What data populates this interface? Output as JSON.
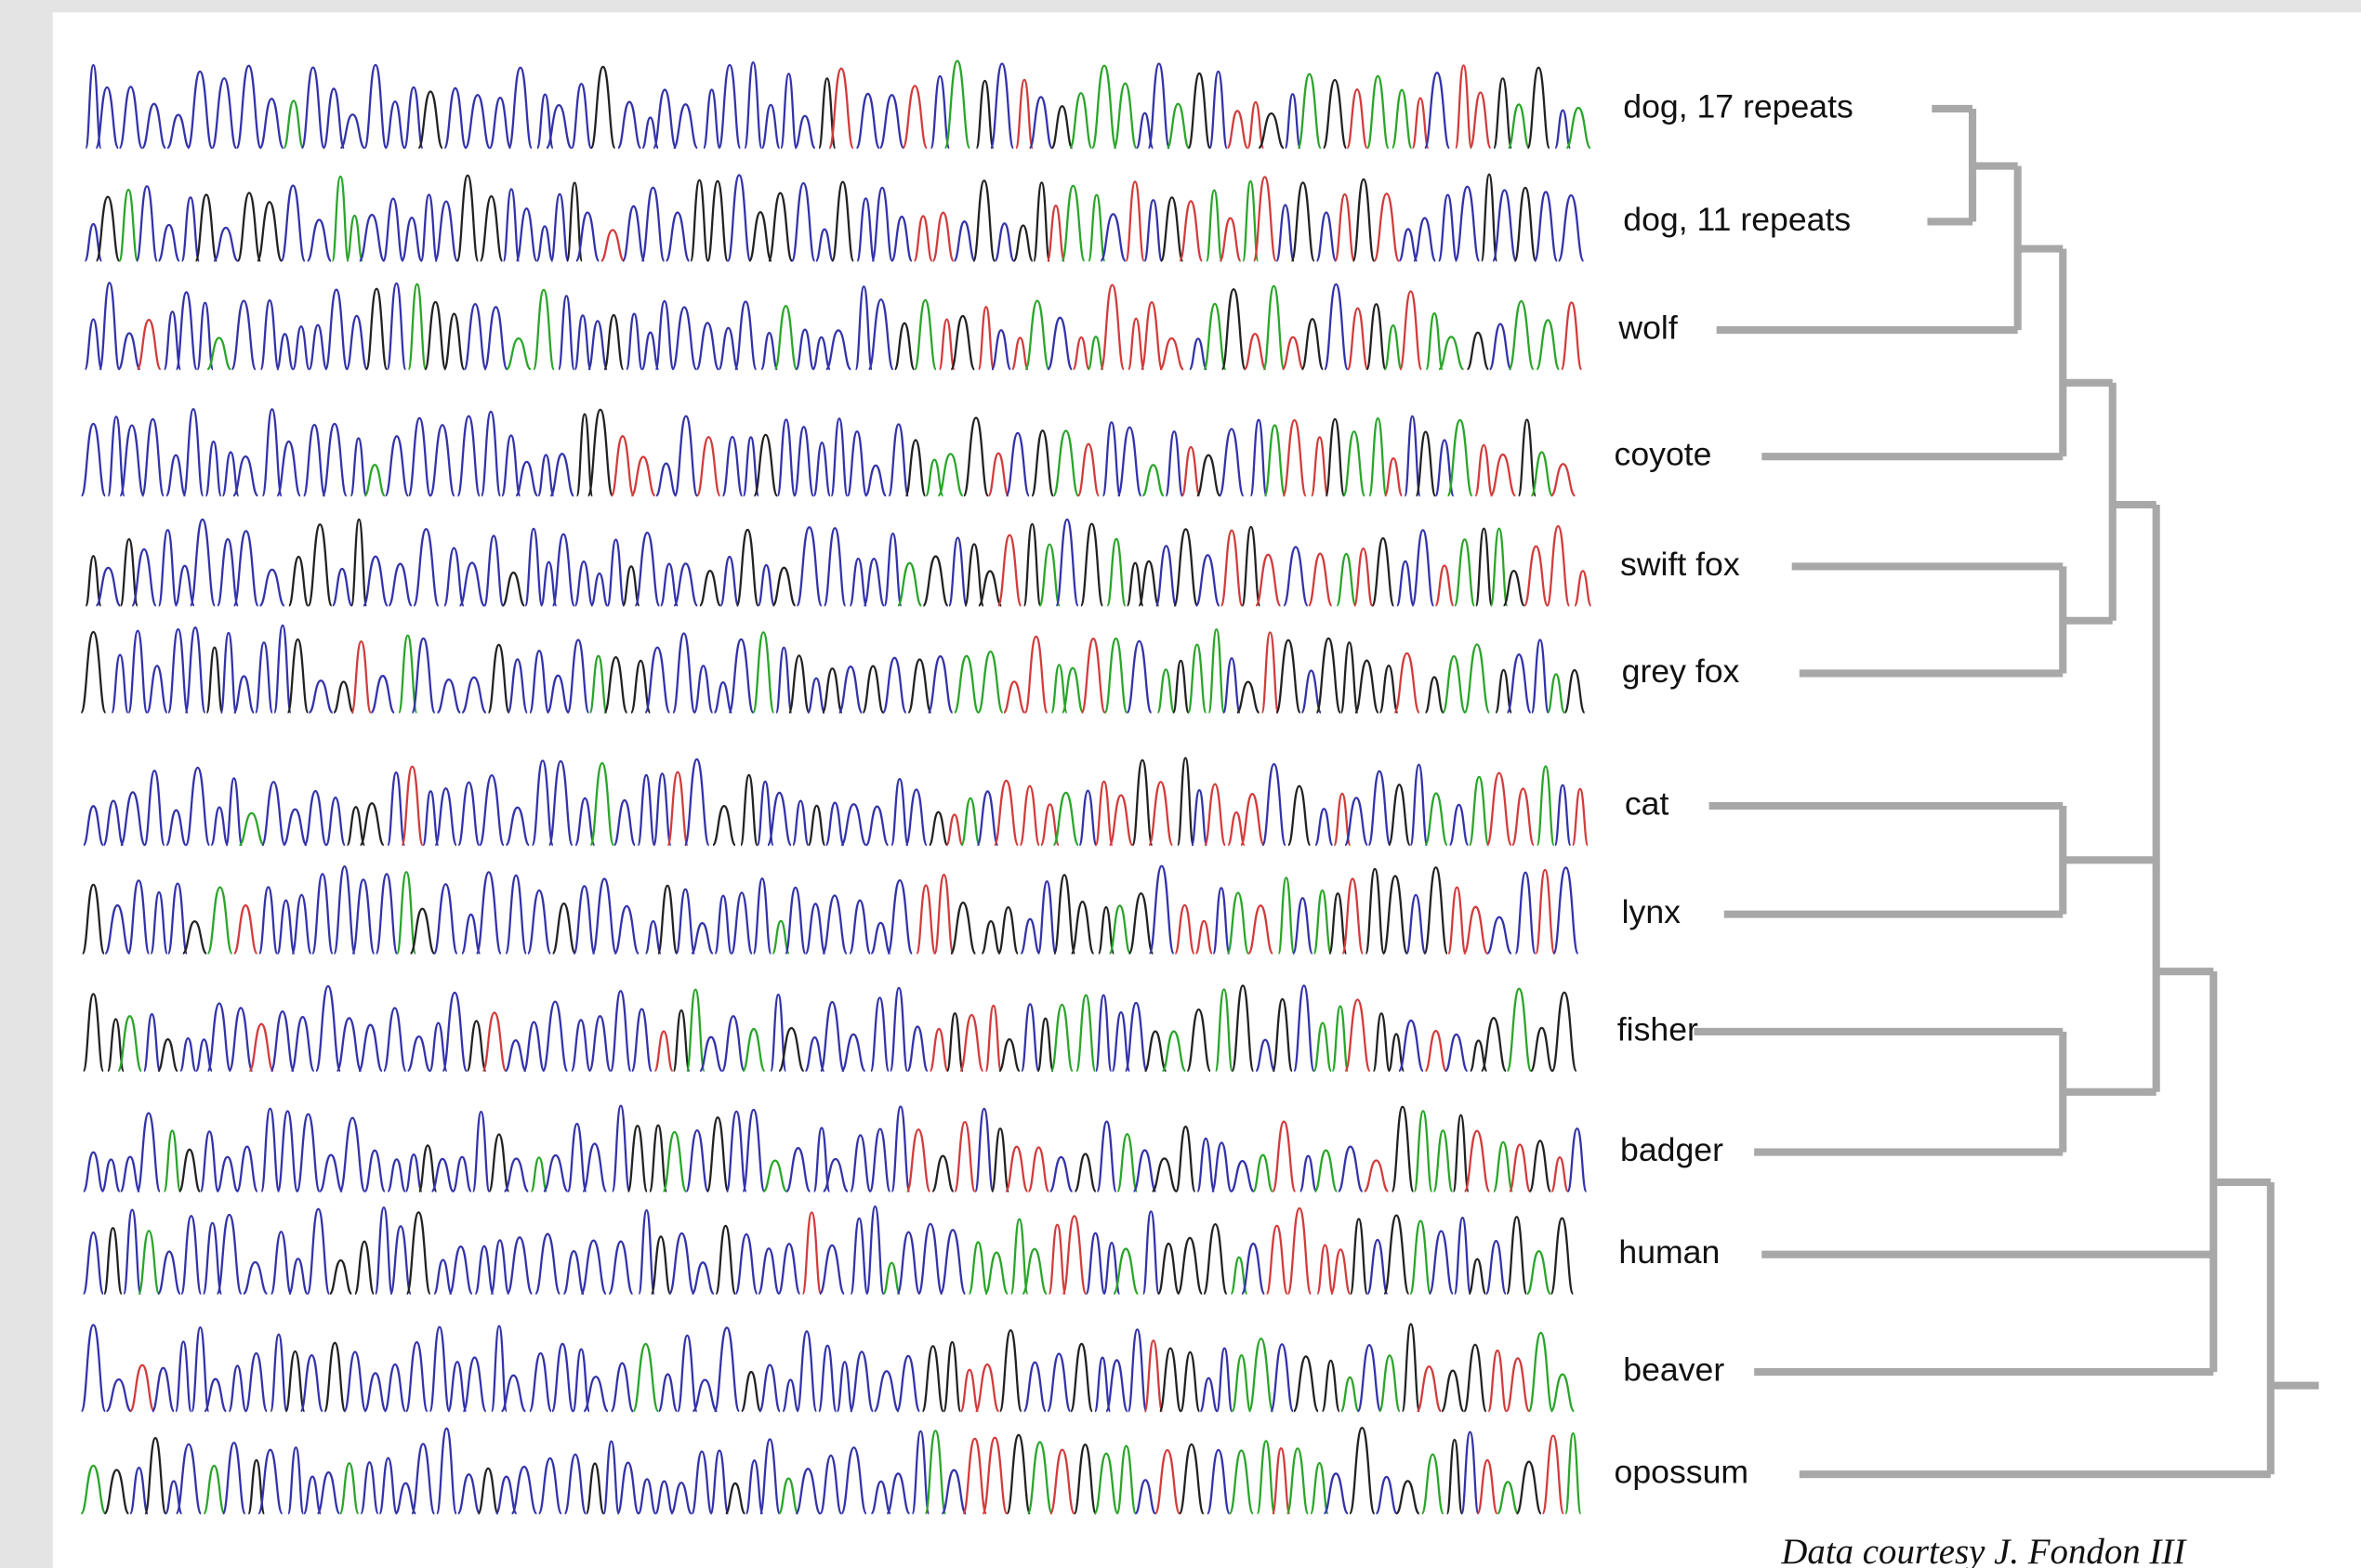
{
  "labels": [
    "dog, 17 repeats",
    "dog, 11 repeats",
    "wolf",
    "coyote",
    "swift fox",
    "grey fox",
    "cat",
    "lynx",
    "fisher",
    "badger",
    "human",
    "beaver",
    "opossum"
  ],
  "credit": "Data courtesy J. Fondon III"
}
